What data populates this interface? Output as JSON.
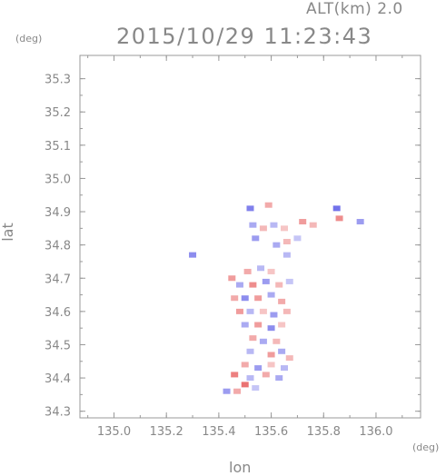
{
  "header": {
    "altitude_text": "ALT(km) 2.0",
    "timestamp": "2015/10/29 11:23:43"
  },
  "chart_data": {
    "type": "scatter",
    "title": "2015/10/29 11:23:43",
    "xlabel": "lon",
    "ylabel": "lat",
    "x_unit": "(deg)",
    "y_unit": "(deg)",
    "xlim": [
      134.87,
      136.17
    ],
    "ylim": [
      34.28,
      35.37
    ],
    "x_ticks": [
      "135.0",
      "135.2",
      "135.4",
      "135.6",
      "135.8",
      "136.0"
    ],
    "y_ticks": [
      "34.3",
      "34.4",
      "34.5",
      "34.6",
      "34.7",
      "34.8",
      "34.9",
      "35.0",
      "35.1",
      "35.2",
      "35.3"
    ],
    "grid": false,
    "colors": {
      "positive": "#e03030",
      "negative": "#3030e0",
      "axis": "#999999"
    },
    "points": [
      {
        "lon": 135.52,
        "lat": 34.91,
        "v": -0.8
      },
      {
        "lon": 135.59,
        "lat": 34.92,
        "v": 0.5
      },
      {
        "lon": 135.85,
        "lat": 34.91,
        "v": -0.9
      },
      {
        "lon": 135.94,
        "lat": 34.87,
        "v": -0.6
      },
      {
        "lon": 135.86,
        "lat": 34.88,
        "v": 0.7
      },
      {
        "lon": 135.72,
        "lat": 34.87,
        "v": 0.6
      },
      {
        "lon": 135.76,
        "lat": 34.86,
        "v": 0.4
      },
      {
        "lon": 135.53,
        "lat": 34.86,
        "v": -0.5
      },
      {
        "lon": 135.57,
        "lat": 34.85,
        "v": 0.4
      },
      {
        "lon": 135.61,
        "lat": 34.86,
        "v": -0.4
      },
      {
        "lon": 135.65,
        "lat": 34.85,
        "v": 0.3
      },
      {
        "lon": 135.54,
        "lat": 34.82,
        "v": -0.6
      },
      {
        "lon": 135.62,
        "lat": 34.8,
        "v": -0.5
      },
      {
        "lon": 135.66,
        "lat": 34.81,
        "v": 0.4
      },
      {
        "lon": 135.7,
        "lat": 34.82,
        "v": -0.3
      },
      {
        "lon": 135.3,
        "lat": 34.77,
        "v": -0.7
      },
      {
        "lon": 135.66,
        "lat": 34.77,
        "v": -0.4
      },
      {
        "lon": 135.51,
        "lat": 34.72,
        "v": 0.5
      },
      {
        "lon": 135.56,
        "lat": 34.73,
        "v": -0.4
      },
      {
        "lon": 135.6,
        "lat": 34.72,
        "v": 0.3
      },
      {
        "lon": 135.45,
        "lat": 34.7,
        "v": 0.6
      },
      {
        "lon": 135.48,
        "lat": 34.68,
        "v": -0.5
      },
      {
        "lon": 135.53,
        "lat": 34.68,
        "v": 0.7
      },
      {
        "lon": 135.58,
        "lat": 34.69,
        "v": -0.6
      },
      {
        "lon": 135.63,
        "lat": 34.68,
        "v": 0.4
      },
      {
        "lon": 135.67,
        "lat": 34.69,
        "v": -0.3
      },
      {
        "lon": 135.46,
        "lat": 34.64,
        "v": 0.5
      },
      {
        "lon": 135.5,
        "lat": 34.64,
        "v": -0.7
      },
      {
        "lon": 135.55,
        "lat": 34.64,
        "v": 0.6
      },
      {
        "lon": 135.6,
        "lat": 34.65,
        "v": -0.5
      },
      {
        "lon": 135.64,
        "lat": 34.63,
        "v": 0.5
      },
      {
        "lon": 135.48,
        "lat": 34.6,
        "v": 0.6
      },
      {
        "lon": 135.52,
        "lat": 34.6,
        "v": -0.4
      },
      {
        "lon": 135.57,
        "lat": 34.6,
        "v": 0.3
      },
      {
        "lon": 135.61,
        "lat": 34.59,
        "v": -0.6
      },
      {
        "lon": 135.66,
        "lat": 34.6,
        "v": 0.4
      },
      {
        "lon": 135.5,
        "lat": 34.56,
        "v": -0.5
      },
      {
        "lon": 135.55,
        "lat": 34.56,
        "v": 0.6
      },
      {
        "lon": 135.6,
        "lat": 34.55,
        "v": -0.7
      },
      {
        "lon": 135.64,
        "lat": 34.56,
        "v": 0.3
      },
      {
        "lon": 135.53,
        "lat": 34.52,
        "v": 0.5
      },
      {
        "lon": 135.57,
        "lat": 34.51,
        "v": -0.5
      },
      {
        "lon": 135.62,
        "lat": 34.51,
        "v": 0.4
      },
      {
        "lon": 135.52,
        "lat": 34.48,
        "v": -0.4
      },
      {
        "lon": 135.6,
        "lat": 34.47,
        "v": 0.6
      },
      {
        "lon": 135.64,
        "lat": 34.48,
        "v": -0.5
      },
      {
        "lon": 135.67,
        "lat": 34.46,
        "v": 0.4
      },
      {
        "lon": 135.5,
        "lat": 34.44,
        "v": 0.5
      },
      {
        "lon": 135.55,
        "lat": 34.43,
        "v": -0.6
      },
      {
        "lon": 135.6,
        "lat": 34.44,
        "v": 0.3
      },
      {
        "lon": 135.65,
        "lat": 34.43,
        "v": -0.4
      },
      {
        "lon": 135.46,
        "lat": 34.41,
        "v": 0.8
      },
      {
        "lon": 135.52,
        "lat": 34.4,
        "v": -0.4
      },
      {
        "lon": 135.58,
        "lat": 34.41,
        "v": 0.5
      },
      {
        "lon": 135.63,
        "lat": 34.4,
        "v": -0.5
      },
      {
        "lon": 135.5,
        "lat": 34.38,
        "v": 0.9
      },
      {
        "lon": 135.54,
        "lat": 34.37,
        "v": -0.3
      },
      {
        "lon": 135.43,
        "lat": 34.36,
        "v": -0.6
      },
      {
        "lon": 135.47,
        "lat": 34.36,
        "v": 0.5
      }
    ]
  }
}
